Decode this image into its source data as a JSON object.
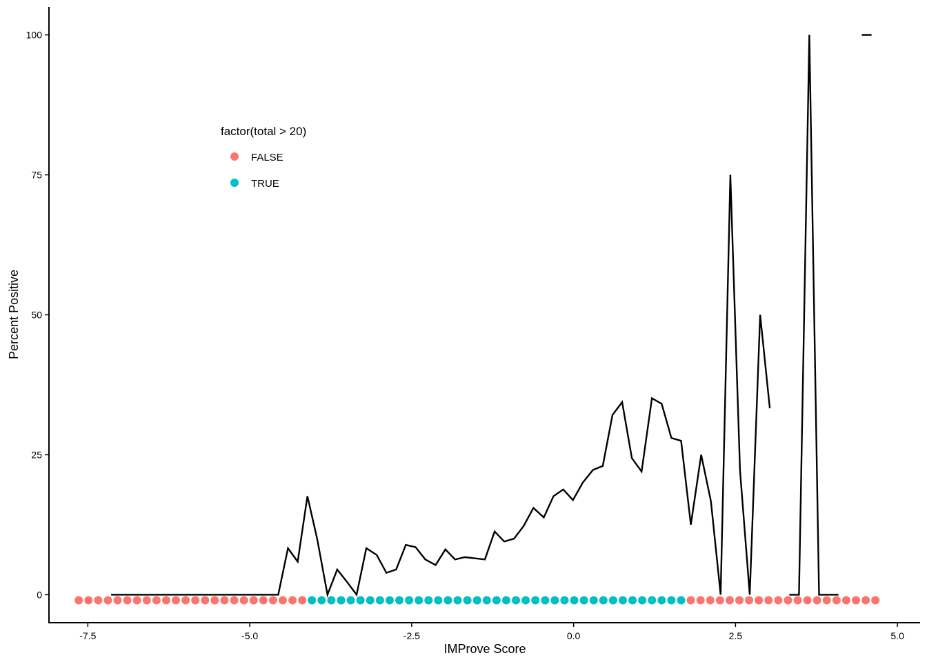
{
  "chart_data": {
    "type": "line",
    "xlabel": "IMProve Score",
    "ylabel": "Percent Positive",
    "xlim": [
      -8.1,
      5.35
    ],
    "ylim": [
      -5,
      105
    ],
    "x_ticks": [
      -7.5,
      -5.0,
      -2.5,
      0.0,
      2.5,
      5.0
    ],
    "x_tick_labels": [
      "-7.5",
      "-5.0",
      "-2.5",
      "0.0",
      "2.5",
      "5.0"
    ],
    "y_ticks": [
      0,
      25,
      50,
      75,
      100
    ],
    "y_tick_labels": [
      "0",
      "25",
      "50",
      "75",
      "100"
    ],
    "grid": false,
    "legend": {
      "title": "factor(total > 20)",
      "placement": "inside top-left",
      "entries": [
        {
          "label": "FALSE",
          "color": "#F8766D"
        },
        {
          "label": "TRUE",
          "color": "#00BFC4"
        }
      ]
    },
    "line_color": "#000000",
    "line_segments": [
      {
        "x": [
          -7.14,
          -6.99,
          -6.84,
          -6.69,
          -6.54,
          -6.38,
          -6.23,
          -6.08,
          -5.93,
          -5.78,
          -5.62,
          -5.47,
          -5.32,
          -5.17,
          -5.02,
          -4.87,
          -4.71,
          -4.56,
          -4.41,
          -4.26,
          -4.11,
          -3.96,
          -3.8,
          -3.65,
          -3.5,
          -3.35,
          -3.2,
          -3.04,
          -2.89,
          -2.74,
          -2.59,
          -2.44,
          -2.29,
          -2.13,
          -1.98,
          -1.83,
          -1.68,
          -1.53,
          -1.37,
          -1.22,
          -1.07,
          -0.92,
          -0.77,
          -0.62,
          -0.46,
          -0.31,
          -0.16,
          -0.01,
          0.14,
          0.3,
          0.45,
          0.6,
          0.75,
          0.9,
          1.05,
          1.21,
          1.36,
          1.51,
          1.66,
          1.81,
          1.97,
          2.12,
          2.27,
          2.42,
          2.57,
          2.72,
          2.88,
          3.03
        ],
        "y": [
          0,
          0,
          0,
          0,
          0,
          0,
          0,
          0,
          0,
          0,
          0,
          0,
          0,
          0,
          0,
          0,
          0,
          0,
          8.3,
          5.9,
          17.6,
          10,
          0,
          4.5,
          2.3,
          0,
          8.3,
          7.1,
          3.9,
          4.5,
          8.9,
          8.5,
          6.3,
          5.3,
          8.1,
          6.3,
          6.7,
          6.5,
          6.3,
          11.3,
          9.5,
          10,
          12.3,
          15.5,
          13.8,
          17.6,
          18.8,
          16.9,
          20,
          22.3,
          23,
          32.1,
          34.4,
          24.4,
          22,
          35.1,
          34.1,
          28,
          27.5,
          12.5,
          25,
          16.7,
          0,
          75,
          22.2,
          0,
          50,
          33.3
        ]
      },
      {
        "x": [
          3.33,
          3.48,
          3.64,
          3.79,
          3.94,
          4.09
        ],
        "y": [
          0,
          0,
          100,
          0,
          0,
          0
        ]
      },
      {
        "x": [
          4.45,
          4.6
        ],
        "y": [
          100,
          100
        ]
      }
    ],
    "points": {
      "y": -1,
      "false_x": [
        -7.64,
        -7.49,
        -7.34,
        -7.19,
        -7.04,
        -6.89,
        -6.74,
        -6.59,
        -6.44,
        -6.29,
        -6.14,
        -5.99,
        -5.84,
        -5.69,
        -5.54,
        -5.39,
        -5.24,
        -5.09,
        -4.94,
        -4.79,
        -4.64,
        -4.49,
        -4.34,
        -4.19,
        1.81,
        1.96,
        2.11,
        2.26,
        2.41,
        2.56,
        2.71,
        2.86,
        3.01,
        3.16,
        3.31,
        3.46,
        3.61,
        3.76,
        3.91,
        4.06,
        4.21,
        4.36,
        4.51,
        4.66
      ],
      "true_x": [
        -4.04,
        -3.89,
        -3.74,
        -3.59,
        -3.44,
        -3.29,
        -3.14,
        -2.99,
        -2.84,
        -2.69,
        -2.54,
        -2.39,
        -2.24,
        -2.09,
        -1.94,
        -1.79,
        -1.64,
        -1.49,
        -1.34,
        -1.19,
        -1.04,
        -0.89,
        -0.74,
        -0.59,
        -0.44,
        -0.29,
        -0.14,
        0.01,
        0.16,
        0.31,
        0.46,
        0.61,
        0.76,
        0.91,
        1.06,
        1.21,
        1.36,
        1.51,
        1.66
      ]
    }
  }
}
